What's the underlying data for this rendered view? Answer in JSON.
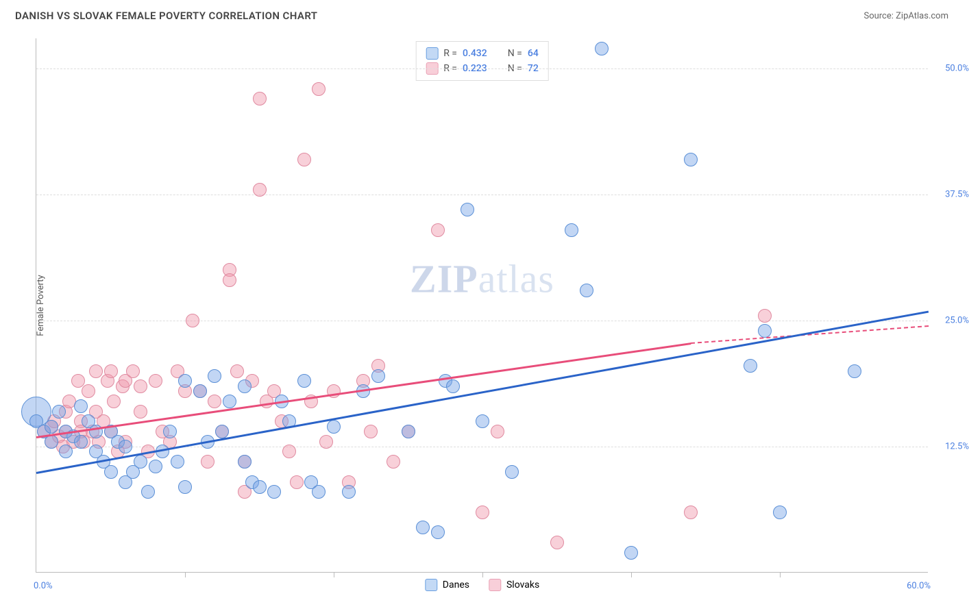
{
  "title": "DANISH VS SLOVAK FEMALE POVERTY CORRELATION CHART",
  "source_label": "Source: ZipAtlas.com",
  "watermark": {
    "part1": "ZIP",
    "part2": "atlas"
  },
  "y_axis_title": "Female Poverty",
  "x_axis": {
    "min": 0.0,
    "max": 60.0,
    "label_min": "0.0%",
    "label_max": "60.0%",
    "tick_positions": [
      10,
      20,
      30,
      40,
      50
    ]
  },
  "y_axis": {
    "min": 0.0,
    "max": 53.0,
    "gridlines": [
      12.5,
      25.0,
      37.5,
      50.0
    ],
    "grid_labels": [
      "12.5%",
      "25.0%",
      "37.5%",
      "50.0%"
    ]
  },
  "series": {
    "danes": {
      "label": "Danes",
      "color_fill": "rgba(120,165,230,0.45)",
      "color_stroke": "#5a8fd6",
      "trend_color": "#2a63c8",
      "swatch_fill": "#c3d9f5",
      "swatch_border": "#6a9fe0",
      "R": "0.432",
      "N": "64",
      "trend": {
        "x1": 0,
        "y1": 10.0,
        "x2": 60,
        "y2": 26.0
      },
      "radius": 10,
      "points": [
        [
          0,
          15
        ],
        [
          0.5,
          14
        ],
        [
          1,
          14.5
        ],
        [
          1,
          13
        ],
        [
          1.5,
          16
        ],
        [
          2,
          14
        ],
        [
          2,
          12
        ],
        [
          2.5,
          13.5
        ],
        [
          3,
          16.5
        ],
        [
          3,
          13
        ],
        [
          3.5,
          15
        ],
        [
          4,
          14
        ],
        [
          4,
          12
        ],
        [
          4.5,
          11
        ],
        [
          5,
          14
        ],
        [
          5,
          10
        ],
        [
          5.5,
          13
        ],
        [
          6,
          12.5
        ],
        [
          6,
          9
        ],
        [
          6.5,
          10
        ],
        [
          7,
          11
        ],
        [
          7.5,
          8
        ],
        [
          8,
          10.5
        ],
        [
          8.5,
          12
        ],
        [
          9,
          14
        ],
        [
          9.5,
          11
        ],
        [
          10,
          8.5
        ],
        [
          10,
          19
        ],
        [
          11,
          18
        ],
        [
          11.5,
          13
        ],
        [
          12,
          19.5
        ],
        [
          12.5,
          14
        ],
        [
          13,
          17
        ],
        [
          14,
          18.5
        ],
        [
          14,
          11
        ],
        [
          14.5,
          9
        ],
        [
          15,
          8.5
        ],
        [
          16,
          8
        ],
        [
          16.5,
          17
        ],
        [
          17,
          15
        ],
        [
          18,
          19
        ],
        [
          18.5,
          9
        ],
        [
          19,
          8
        ],
        [
          20,
          14.5
        ],
        [
          21,
          8
        ],
        [
          22,
          18
        ],
        [
          23,
          19.5
        ],
        [
          25,
          14
        ],
        [
          26,
          4.5
        ],
        [
          27,
          4
        ],
        [
          27.5,
          19
        ],
        [
          28,
          18.5
        ],
        [
          29,
          36
        ],
        [
          30,
          15
        ],
        [
          32,
          10
        ],
        [
          36,
          34
        ],
        [
          37,
          28
        ],
        [
          38,
          52
        ],
        [
          40,
          2
        ],
        [
          44,
          41
        ],
        [
          48,
          20.5
        ],
        [
          49,
          24
        ],
        [
          50,
          6
        ],
        [
          55,
          20
        ]
      ],
      "large_points": [
        {
          "x": 0,
          "y": 16,
          "r": 22
        }
      ]
    },
    "slovaks": {
      "label": "Slovaks",
      "color_fill": "rgba(240,150,170,0.45)",
      "color_stroke": "#e08aa0",
      "trend_color": "#e84d7a",
      "swatch_fill": "#f8cfd9",
      "swatch_border": "#eaa0b4",
      "R": "0.223",
      "N": "72",
      "trend": {
        "x1": 0,
        "y1": 13.5,
        "x2": 44,
        "y2": 22.8
      },
      "trend_dash": {
        "x1": 44,
        "y1": 22.8,
        "x2": 60,
        "y2": 24.5
      },
      "radius": 10,
      "points": [
        [
          0.5,
          14
        ],
        [
          1,
          14.5
        ],
        [
          1,
          13
        ],
        [
          1.2,
          15
        ],
        [
          1.5,
          13.5
        ],
        [
          1.8,
          12.5
        ],
        [
          2,
          16
        ],
        [
          2,
          14
        ],
        [
          2.2,
          17
        ],
        [
          2.5,
          13
        ],
        [
          2.8,
          19
        ],
        [
          3,
          15
        ],
        [
          3,
          14
        ],
        [
          3.2,
          13
        ],
        [
          3.5,
          18
        ],
        [
          3.8,
          14
        ],
        [
          4,
          20
        ],
        [
          4,
          16
        ],
        [
          4.2,
          13
        ],
        [
          4.5,
          15
        ],
        [
          4.8,
          19
        ],
        [
          5,
          20
        ],
        [
          5,
          14
        ],
        [
          5.2,
          17
        ],
        [
          5.5,
          12
        ],
        [
          5.8,
          18.5
        ],
        [
          6,
          19
        ],
        [
          6,
          13
        ],
        [
          6.5,
          20
        ],
        [
          7,
          18.5
        ],
        [
          7,
          16
        ],
        [
          7.5,
          12
        ],
        [
          8,
          19
        ],
        [
          8.5,
          14
        ],
        [
          9,
          13
        ],
        [
          9.5,
          20
        ],
        [
          10,
          18
        ],
        [
          10.5,
          25
        ],
        [
          11,
          18
        ],
        [
          11.5,
          11
        ],
        [
          12,
          17
        ],
        [
          12.5,
          14
        ],
        [
          13,
          30
        ],
        [
          13,
          29
        ],
        [
          13.5,
          20
        ],
        [
          14,
          11
        ],
        [
          14,
          8
        ],
        [
          14.5,
          19
        ],
        [
          15,
          47
        ],
        [
          15,
          38
        ],
        [
          15.5,
          17
        ],
        [
          16,
          18
        ],
        [
          16.5,
          15
        ],
        [
          17,
          12
        ],
        [
          17.5,
          9
        ],
        [
          18,
          41
        ],
        [
          18.5,
          17
        ],
        [
          19,
          48
        ],
        [
          19.5,
          13
        ],
        [
          20,
          18
        ],
        [
          21,
          9
        ],
        [
          22,
          19
        ],
        [
          22.5,
          14
        ],
        [
          23,
          20.5
        ],
        [
          24,
          11
        ],
        [
          25,
          14
        ],
        [
          27,
          34
        ],
        [
          30,
          6
        ],
        [
          31,
          14
        ],
        [
          35,
          3
        ],
        [
          44,
          6
        ],
        [
          49,
          25.5
        ]
      ]
    }
  },
  "legend_top_layout": "R = {R}   N = {N}",
  "legend_bottom_order": [
    "danes",
    "slovaks"
  ],
  "background_color": "#ffffff",
  "grid_color": "#dddddd"
}
